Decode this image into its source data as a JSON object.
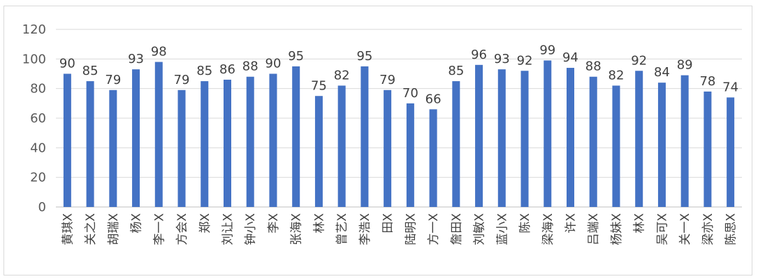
{
  "chart_data": {
    "type": "bar",
    "categories": [
      "黄琪X",
      "关之X",
      "胡瑞X",
      "杨X",
      "李一X",
      "方会X",
      "郑X",
      "刘让X",
      "钟小X",
      "李X",
      "张海X",
      "林X",
      "曾艺X",
      "李浩X",
      "田X",
      "陆明X",
      "方一X",
      "詹田X",
      "刘敏X",
      "蓝小X",
      "陈X",
      "梁海X",
      "许X",
      "吕端X",
      "杨妹X",
      "林X",
      "吴可X",
      "关一X",
      "梁亦X",
      "陈思X"
    ],
    "values": [
      90,
      85,
      79,
      93,
      98,
      79,
      85,
      86,
      88,
      90,
      95,
      75,
      82,
      95,
      79,
      70,
      66,
      85,
      96,
      93,
      92,
      99,
      94,
      88,
      82,
      92,
      84,
      89,
      78,
      74
    ],
    "ylim": [
      0,
      120
    ],
    "yticks": [
      "0",
      "20",
      "40",
      "60",
      "80",
      "100",
      "120"
    ],
    "title": "",
    "xlabel": "",
    "ylabel": "",
    "grid": true,
    "bar_color": "#4472c4",
    "grid_color": "#d9d9d9"
  }
}
